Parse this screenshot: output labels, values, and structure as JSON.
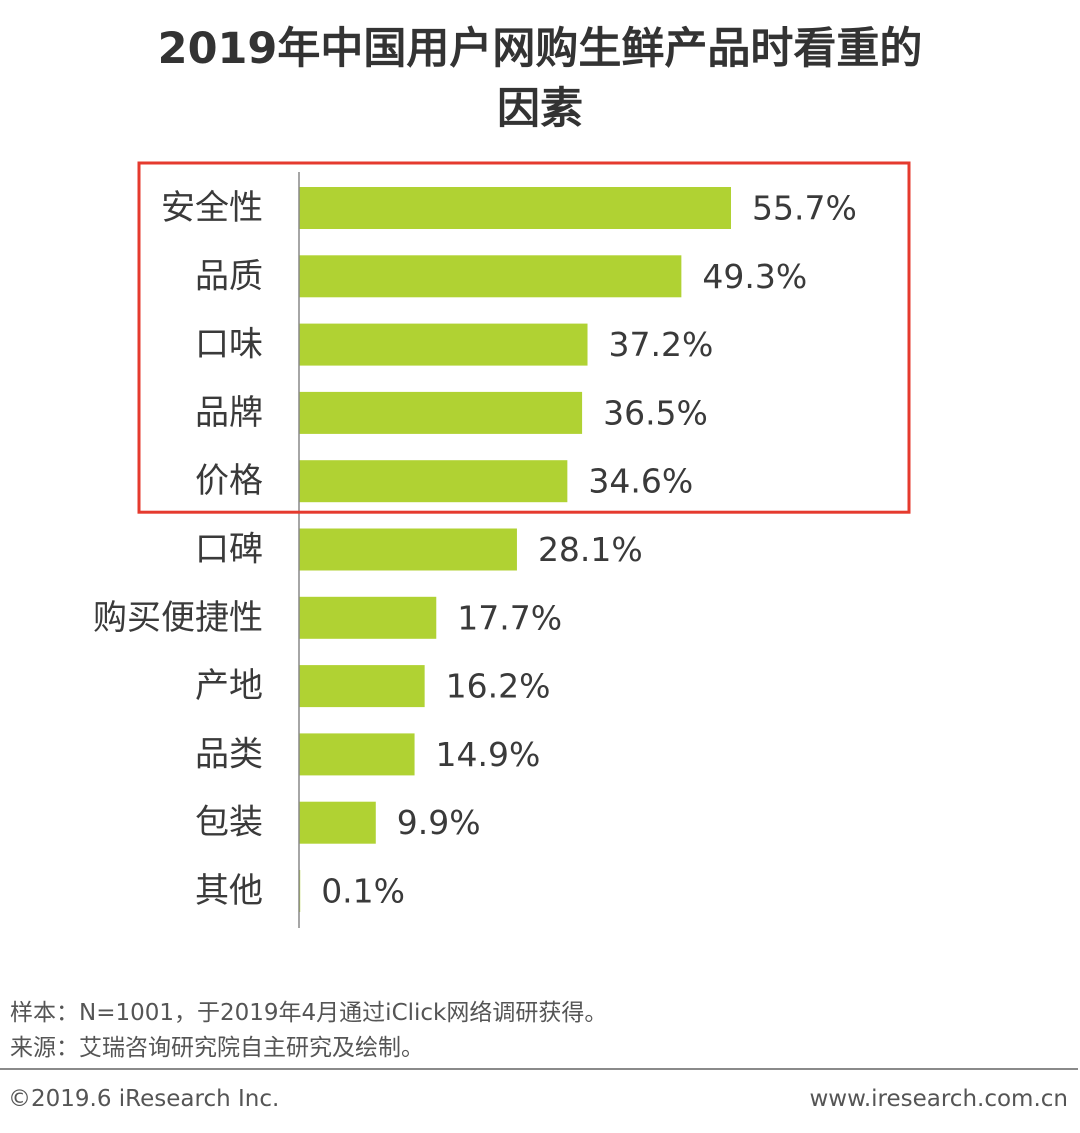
{
  "chart_data": {
    "type": "bar",
    "orientation": "horizontal",
    "title_lines": [
      "2019年中国用户网购生鲜产品时看重的",
      "因素"
    ],
    "categories": [
      "安全性",
      "品质",
      "口味",
      "品牌",
      "价格",
      "口碑",
      "购买便捷性",
      "产地",
      "品类",
      "包装",
      "其他"
    ],
    "values": [
      55.7,
      49.3,
      37.2,
      36.5,
      34.6,
      28.1,
      17.7,
      16.2,
      14.9,
      9.9,
      0.1
    ],
    "value_labels": [
      "55.7%",
      "49.3%",
      "37.2%",
      "36.5%",
      "34.6%",
      "28.1%",
      "17.7%",
      "16.2%",
      "14.9%",
      "9.9%",
      "0.1%"
    ],
    "highlighted_top_n": 5,
    "bar_color": "#b0d233",
    "highlight_box_color": "#e53a2e",
    "axis_color": "#888888",
    "grid": false
  },
  "notes": {
    "sample": "样本：N=1001，于2019年4月通过iClick网络调研获得。",
    "source": "来源：艾瑞咨询研究院自主研究及绘制。"
  },
  "footer": {
    "copyright": "©2019.6 iResearch Inc.",
    "website": "www.iresearch.com.cn"
  }
}
